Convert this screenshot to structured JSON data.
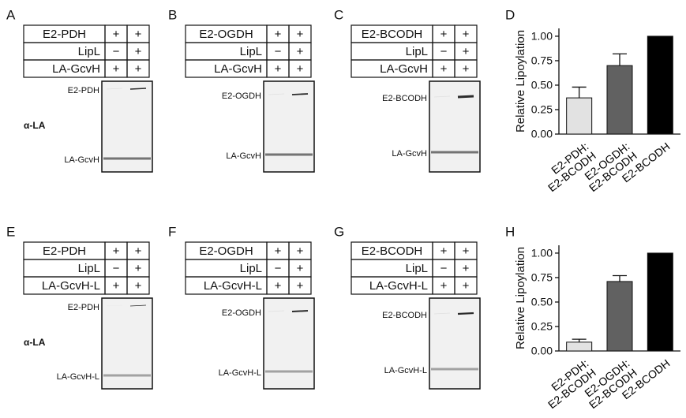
{
  "blots": [
    {
      "letter": "A",
      "rows": [
        [
          "E2-PDH",
          "+",
          "+"
        ],
        [
          "LipL",
          "−",
          "+"
        ],
        [
          "LA-GcvH",
          "+",
          "+"
        ]
      ],
      "band_labels": [
        "E2-PDH",
        "LA-GcvH"
      ],
      "antibody": "α-LA"
    },
    {
      "letter": "B",
      "rows": [
        [
          "E2-OGDH",
          "+",
          "+"
        ],
        [
          "LipL",
          "−",
          "+"
        ],
        [
          "LA-GcvH",
          "+",
          "+"
        ]
      ],
      "band_labels": [
        "E2-OGDH",
        "LA-GcvH"
      ]
    },
    {
      "letter": "C",
      "rows": [
        [
          "E2-BCODH",
          "+",
          "+"
        ],
        [
          "LipL",
          "−",
          "+"
        ],
        [
          "LA-GcvH",
          "+",
          "+"
        ]
      ],
      "band_labels": [
        "E2-BCODH",
        "LA-GcvH"
      ]
    },
    {
      "letter": "E",
      "rows": [
        [
          "E2-PDH",
          "+",
          "+"
        ],
        [
          "LipL",
          "−",
          "+"
        ],
        [
          "LA-GcvH-L",
          "+",
          "+"
        ]
      ],
      "band_labels": [
        "E2-PDH",
        "LA-GcvH-L"
      ],
      "antibody": "α-LA"
    },
    {
      "letter": "F",
      "rows": [
        [
          "E2-OGDH",
          "+",
          "+"
        ],
        [
          "LipL",
          "−",
          "+"
        ],
        [
          "LA-GcvH-L",
          "+",
          "+"
        ]
      ],
      "band_labels": [
        "E2-OGDH",
        "LA-GcvH-L"
      ]
    },
    {
      "letter": "G",
      "rows": [
        [
          "E2-BCODH",
          "+",
          "+"
        ],
        [
          "LipL",
          "−",
          "+"
        ],
        [
          "LA-GcvH-L",
          "+",
          "+"
        ]
      ],
      "band_labels": [
        "E2-BCODH",
        "LA-GcvH-L"
      ]
    }
  ],
  "chart_data": [
    {
      "type": "bar",
      "letter": "D",
      "ylabel": "Relative Lipoylation",
      "categories": [
        "E2-PDH:\nE2-BCODH",
        "E2-OGDH:\nE2-BCODH",
        "E2-BCODH"
      ],
      "values": [
        0.37,
        0.7,
        1.0
      ],
      "errors": [
        0.11,
        0.12,
        null
      ],
      "colors": [
        "#e2e2e2",
        "#616161",
        "#000000"
      ],
      "ylim": [
        0,
        1.08
      ],
      "yticks": [
        {
          "value": 0,
          "label": "0.00"
        },
        {
          "value": 0.25,
          "label": "0.25"
        },
        {
          "value": 0.5,
          "label": "0.50"
        },
        {
          "value": 0.75,
          "label": "0.75"
        },
        {
          "value": 1,
          "label": "1.00"
        }
      ]
    },
    {
      "type": "bar",
      "letter": "H",
      "ylabel": "Relative Lipoylation",
      "categories": [
        "E2-PDH:\nE2-BCODH",
        "E2-OGDH:\nE2-BCODH",
        "E2-BCODH"
      ],
      "values": [
        0.09,
        0.71,
        1.0
      ],
      "errors": [
        0.03,
        0.06,
        null
      ],
      "colors": [
        "#e2e2e2",
        "#616161",
        "#000000"
      ],
      "ylim": [
        0,
        1.08
      ],
      "yticks": [
        {
          "value": 0,
          "label": "0.00"
        },
        {
          "value": 0.25,
          "label": "0.25"
        },
        {
          "value": 0.5,
          "label": "0.50"
        },
        {
          "value": 0.75,
          "label": "0.75"
        },
        {
          "value": 1,
          "label": "1.00"
        }
      ]
    }
  ]
}
